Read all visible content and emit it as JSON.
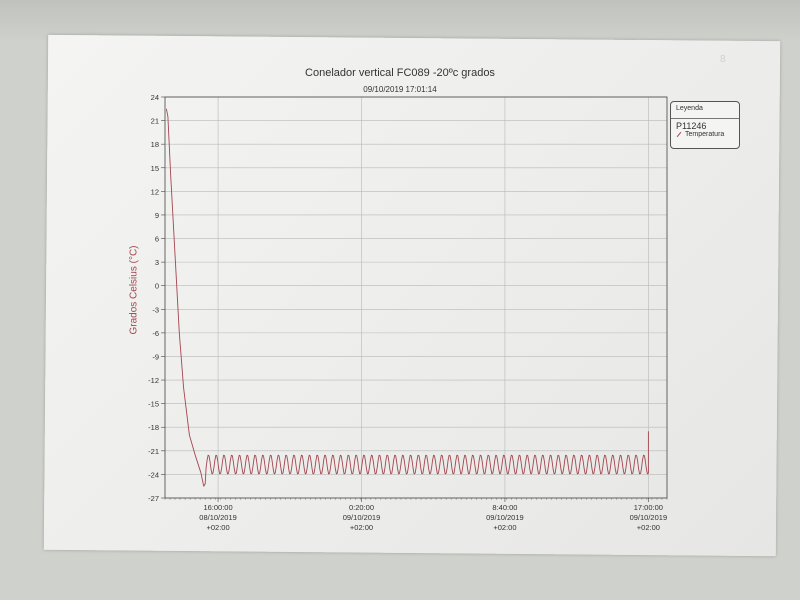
{
  "chart_data": {
    "type": "line",
    "title": "Conelador vertical FC089 -20ºc grados",
    "subtitle": "09/10/2019 17:01:14",
    "ylabel": "Grados Celsius (°C)",
    "ylim": [
      -27,
      24
    ],
    "yticks": [
      24,
      21,
      18,
      15,
      12,
      9,
      6,
      3,
      0,
      -3,
      -6,
      -9,
      -12,
      -15,
      -18,
      -21,
      -24,
      -27
    ],
    "xlim": [
      "2019-10-08T12:55",
      "2019-10-09T18:05"
    ],
    "xticks": [
      {
        "at": "2019-10-08T16:00",
        "lines": [
          "16:00:00",
          "08/10/2019",
          "+02:00"
        ]
      },
      {
        "at": "2019-10-09T00:20",
        "lines": [
          "0:20:00",
          "09/10/2019",
          "+02:00"
        ]
      },
      {
        "at": "2019-10-09T08:40",
        "lines": [
          "8:40:00",
          "09/10/2019",
          "+02:00"
        ]
      },
      {
        "at": "2019-10-09T17:00",
        "lines": [
          "17:00:00",
          "09/10/2019",
          "+02:00"
        ]
      }
    ],
    "grid": true,
    "legend": {
      "placement": "right",
      "header": "Leyenda",
      "group": "P11246",
      "entries": [
        "Temperatura"
      ]
    },
    "series": [
      {
        "name": "Temperatura",
        "color": "#a3464f",
        "x": [
          "2019-10-08T13:00",
          "2019-10-08T13:05",
          "2019-10-08T13:15",
          "2019-10-08T13:30",
          "2019-10-08T13:45",
          "2019-10-08T14:00",
          "2019-10-08T14:20",
          "2019-10-08T14:40",
          "2019-10-08T15:00",
          "2019-10-08T15:10",
          "2019-10-08T15:15"
        ],
        "y": [
          22.5,
          21.5,
          14,
          4,
          -6,
          -13,
          -19,
          -21.5,
          -23.8,
          -25.5,
          -25.2
        ],
        "oscillation": {
          "start": "2019-10-08T15:15",
          "end": "2019-10-09T17:00",
          "high": -21.5,
          "low": -24,
          "cycles": 57
        },
        "end_spike": {
          "x": "2019-10-09T17:00",
          "y": -18.5
        }
      }
    ]
  }
}
